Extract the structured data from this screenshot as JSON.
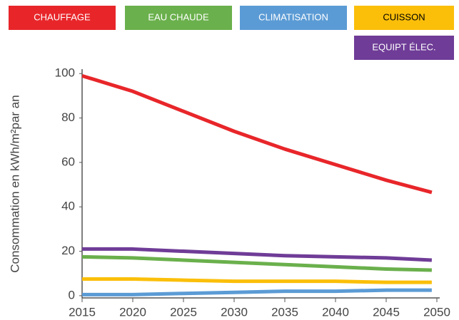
{
  "chart_data": {
    "type": "line",
    "y_label": "Consommation en kWh/m²par an",
    "x": [
      2015,
      2020,
      2025,
      2030,
      2035,
      2040,
      2045,
      2049.5
    ],
    "series": [
      {
        "name": "CHAUFFAGE",
        "color": "#e8262a",
        "text_color": "#ffffff",
        "values": [
          99,
          92,
          83,
          74,
          66,
          59,
          52,
          46.5
        ]
      },
      {
        "name": "EAU CHAUDE",
        "color": "#6ab04c",
        "text_color": "#ffffff",
        "values": [
          17.5,
          17,
          16,
          15,
          14,
          13,
          12,
          11.5
        ]
      },
      {
        "name": "CLIMATISATION",
        "color": "#5b9bd5",
        "text_color": "#ffffff",
        "values": [
          0.5,
          0.5,
          1,
          1.5,
          2,
          2,
          2.5,
          2.5
        ]
      },
      {
        "name": "CUISSON",
        "color": "#fbbf0a",
        "text_color": "#000000",
        "values": [
          7.5,
          7.5,
          7,
          6.5,
          6.5,
          6.5,
          6,
          6
        ]
      },
      {
        "name": "EQUIPT ÉLEC.",
        "color": "#6f3c97",
        "text_color": "#ffffff",
        "values": [
          21,
          21,
          20,
          19,
          18,
          17.5,
          17,
          16
        ]
      }
    ],
    "xlim": [
      2015,
      2050
    ],
    "xticks": [
      2015,
      2020,
      2025,
      2030,
      2035,
      2040,
      2045,
      2050
    ],
    "ylim": [
      -1,
      102
    ],
    "yticks": [
      0,
      20,
      40,
      60,
      80,
      100
    ],
    "grid": false
  }
}
